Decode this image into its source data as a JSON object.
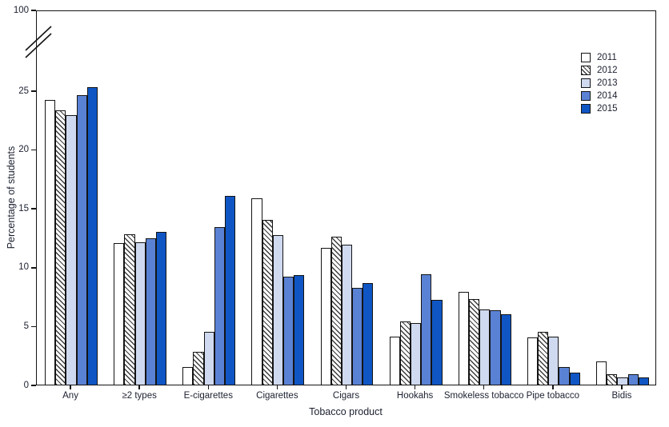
{
  "chart_data": {
    "type": "bar",
    "title": "",
    "xlabel": "Tobacco product",
    "ylabel": "Percentage of students",
    "categories": [
      "Any",
      "≥2 types",
      "E-cigarettes",
      "Cigarettes",
      "Cigars",
      "Hookahs",
      "Smokeless tobacco",
      "Pipe tobacco",
      "Bidis"
    ],
    "series": [
      {
        "name": "2011",
        "color": "#ffffff",
        "pattern": "solid",
        "values": [
          24.2,
          12.0,
          1.5,
          15.8,
          11.6,
          4.1,
          7.9,
          4.0,
          2.0
        ]
      },
      {
        "name": "2012",
        "color": "#ffffff",
        "pattern": "hatch",
        "values": [
          23.3,
          12.8,
          2.8,
          14.0,
          12.6,
          5.4,
          7.3,
          4.5,
          0.9
        ]
      },
      {
        "name": "2013",
        "color": "#cfd9ef",
        "pattern": "solid",
        "values": [
          22.9,
          12.1,
          4.5,
          12.7,
          11.9,
          5.2,
          6.4,
          4.1,
          0.6
        ]
      },
      {
        "name": "2014",
        "color": "#5a82d4",
        "pattern": "solid",
        "values": [
          24.6,
          12.4,
          13.4,
          9.2,
          8.2,
          9.4,
          6.3,
          1.5,
          0.9
        ]
      },
      {
        "name": "2015",
        "color": "#0f56c4",
        "pattern": "solid",
        "values": [
          25.3,
          13.0,
          16.0,
          9.3,
          8.6,
          7.2,
          6.0,
          1.0,
          0.6
        ]
      }
    ],
    "y_ticks": [
      0,
      5,
      10,
      15,
      20,
      25
    ],
    "y_break_top_label": "100",
    "axis_break": true,
    "ylim_display": [
      0,
      25
    ],
    "grid": false,
    "legend_position": "top-right",
    "bar_outline_color": "#141414",
    "text_color": "#1c2030"
  }
}
